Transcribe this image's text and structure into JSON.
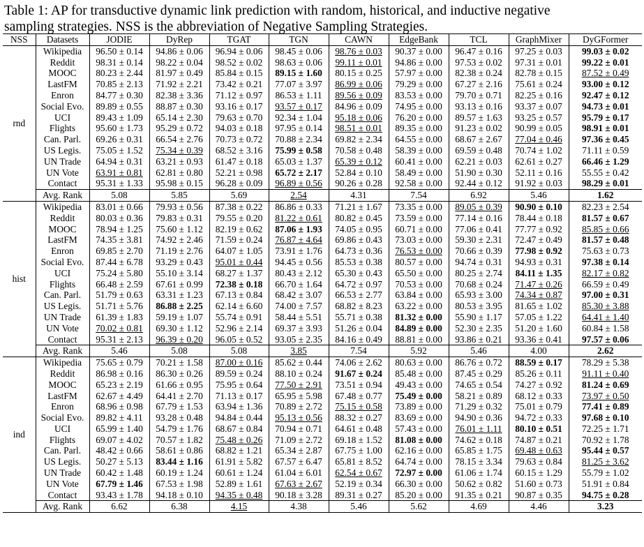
{
  "caption": {
    "line1": "Table 1:  AP for transductive dynamic link prediction with random, historical, and inductive negative",
    "line2": "sampling strategies. NSS is the abbreviation of Negative Sampling Strategies."
  },
  "headers": [
    "NSS",
    "Datasets",
    "JODIE",
    "DyRep",
    "TGAT",
    "TGN",
    "CAWN",
    "EdgeBank",
    "TCL",
    "GraphMixer",
    "DyGFormer"
  ],
  "groups": [
    {
      "nss": "rnd",
      "rows": [
        {
          "dataset": "Wikipedia",
          "cells": [
            "96.50 ± 0.14",
            "94.86 ± 0.06",
            "96.94 ± 0.06",
            "98.45 ± 0.06",
            "98.76 ± 0.03",
            "90.37 ± 0.00",
            "96.47 ± 0.16",
            "97.25 ± 0.03",
            "99.03 ± 0.02"
          ],
          "bold": [
            8
          ],
          "ul": [
            4
          ]
        },
        {
          "dataset": "Reddit",
          "cells": [
            "98.31 ± 0.14",
            "98.22 ± 0.04",
            "98.52 ± 0.02",
            "98.63 ± 0.06",
            "99.11 ± 0.01",
            "94.86 ± 0.00",
            "97.53 ± 0.02",
            "97.31 ± 0.01",
            "99.22 ± 0.01"
          ],
          "bold": [
            8
          ],
          "ul": [
            4
          ]
        },
        {
          "dataset": "MOOC",
          "cells": [
            "80.23 ± 2.44",
            "81.97 ± 0.49",
            "85.84 ± 0.15",
            "89.15 ± 1.60",
            "80.15 ± 0.25",
            "57.97 ± 0.00",
            "82.38 ± 0.24",
            "82.78 ± 0.15",
            "87.52 ± 0.49"
          ],
          "bold": [
            3
          ],
          "ul": [
            8
          ]
        },
        {
          "dataset": "LastFM",
          "cells": [
            "70.85 ± 2.13",
            "71.92 ± 2.21",
            "73.42 ± 0.21",
            "77.07 ± 3.97",
            "86.99 ± 0.06",
            "79.29 ± 0.00",
            "67.27 ± 2.16",
            "75.61 ± 0.24",
            "93.00 ± 0.12"
          ],
          "bold": [
            8
          ],
          "ul": [
            4
          ]
        },
        {
          "dataset": "Enron",
          "cells": [
            "84.77 ± 0.30",
            "82.38 ± 3.36",
            "71.12 ± 0.97",
            "86.53 ± 1.11",
            "89.56 ± 0.09",
            "83.53 ± 0.00",
            "79.70 ± 0.71",
            "82.25 ± 0.16",
            "92.47 ± 0.12"
          ],
          "bold": [
            8
          ],
          "ul": [
            4
          ]
        },
        {
          "dataset": "Social Evo.",
          "cells": [
            "89.89 ± 0.55",
            "88.87 ± 0.30",
            "93.16 ± 0.17",
            "93.57 ± 0.17",
            "84.96 ± 0.09",
            "74.95 ± 0.00",
            "93.13 ± 0.16",
            "93.37 ± 0.07",
            "94.73 ± 0.01"
          ],
          "bold": [
            8
          ],
          "ul": [
            3
          ]
        },
        {
          "dataset": "UCI",
          "cells": [
            "89.43 ± 1.09",
            "65.14 ± 2.30",
            "79.63 ± 0.70",
            "92.34 ± 1.04",
            "95.18 ± 0.06",
            "76.20 ± 0.00",
            "89.57 ± 1.63",
            "93.25 ± 0.57",
            "95.79 ± 0.17"
          ],
          "bold": [
            8
          ],
          "ul": [
            4
          ]
        },
        {
          "dataset": "Flights",
          "cells": [
            "95.60 ± 1.73",
            "95.29 ± 0.72",
            "94.03 ± 0.18",
            "97.95 ± 0.14",
            "98.51 ± 0.01",
            "89.35 ± 0.00",
            "91.23 ± 0.02",
            "90.99 ± 0.05",
            "98.91 ± 0.01"
          ],
          "bold": [
            8
          ],
          "ul": [
            4
          ]
        },
        {
          "dataset": "Can. Parl.",
          "cells": [
            "69.26 ± 0.31",
            "66.54 ± 2.76",
            "70.73 ± 0.72",
            "70.88 ± 2.34",
            "69.82 ± 2.34",
            "64.55 ± 0.00",
            "68.67 ± 2.67",
            "77.04 ± 0.46",
            "97.36 ± 0.45"
          ],
          "bold": [
            8
          ],
          "ul": [
            7
          ]
        },
        {
          "dataset": "US Legis.",
          "cells": [
            "75.05 ± 1.52",
            "75.34 ± 0.39",
            "68.52 ± 3.16",
            "75.99 ± 0.58",
            "70.58 ± 0.48",
            "58.39 ± 0.00",
            "69.59 ± 0.48",
            "70.74 ± 1.02",
            "71.11 ± 0.59"
          ],
          "bold": [
            3
          ],
          "ul": [
            1
          ]
        },
        {
          "dataset": "UN Trade",
          "cells": [
            "64.94 ± 0.31",
            "63.21 ± 0.93",
            "61.47 ± 0.18",
            "65.03 ± 1.37",
            "65.39 ± 0.12",
            "60.41 ± 0.00",
            "62.21 ± 0.03",
            "62.61 ± 0.27",
            "66.46 ± 1.29"
          ],
          "bold": [
            8
          ],
          "ul": [
            4
          ]
        },
        {
          "dataset": "UN Vote",
          "cells": [
            "63.91 ± 0.81",
            "62.81 ± 0.80",
            "52.21 ± 0.98",
            "65.72 ± 2.17",
            "52.84 ± 0.10",
            "58.49 ± 0.00",
            "51.90 ± 0.30",
            "52.11 ± 0.16",
            "55.55 ± 0.42"
          ],
          "bold": [
            3
          ],
          "ul": [
            0
          ]
        },
        {
          "dataset": "Contact",
          "cells": [
            "95.31 ± 1.33",
            "95.98 ± 0.15",
            "96.28 ± 0.09",
            "96.89 ± 0.56",
            "90.26 ± 0.28",
            "92.58 ± 0.00",
            "92.44 ± 0.12",
            "91.92 ± 0.03",
            "98.29 ± 0.01"
          ],
          "bold": [
            8
          ],
          "ul": [
            3
          ]
        }
      ],
      "rank": {
        "label": "Avg. Rank",
        "cells": [
          "5.08",
          "5.85",
          "5.69",
          "2.54",
          "4.31",
          "7.54",
          "6.92",
          "5.46",
          "1.62"
        ],
        "bold": [
          8
        ],
        "ul": [
          3
        ]
      }
    },
    {
      "nss": "hist",
      "rows": [
        {
          "dataset": "Wikipedia",
          "cells": [
            "83.01 ± 0.66",
            "79.93 ± 0.56",
            "87.38 ± 0.22",
            "86.86 ± 0.33",
            "71.21 ± 1.67",
            "73.35 ± 0.00",
            "89.05 ± 0.39",
            "90.90 ± 0.10",
            "82.23 ± 2.54"
          ],
          "bold": [
            7
          ],
          "ul": [
            6
          ]
        },
        {
          "dataset": "Reddit",
          "cells": [
            "80.03 ± 0.36",
            "79.83 ± 0.31",
            "79.55 ± 0.20",
            "81.22 ± 0.61",
            "80.82 ± 0.45",
            "73.59 ± 0.00",
            "77.14 ± 0.16",
            "78.44 ± 0.18",
            "81.57 ± 0.67"
          ],
          "bold": [
            8
          ],
          "ul": [
            3
          ]
        },
        {
          "dataset": "MOOC",
          "cells": [
            "78.94 ± 1.25",
            "75.60 ± 1.12",
            "82.19 ± 0.62",
            "87.06 ± 1.93",
            "74.05 ± 0.95",
            "60.71 ± 0.00",
            "77.06 ± 0.41",
            "77.77 ± 0.92",
            "85.85 ± 0.66"
          ],
          "bold": [
            3
          ],
          "ul": [
            8
          ]
        },
        {
          "dataset": "LastFM",
          "cells": [
            "74.35 ± 3.81",
            "74.92 ± 2.46",
            "71.59 ± 0.24",
            "76.87 ± 4.64",
            "69.86 ± 0.43",
            "73.03 ± 0.00",
            "59.30 ± 2.31",
            "72.47 ± 0.49",
            "81.57 ± 0.48"
          ],
          "bold": [
            8
          ],
          "ul": [
            3
          ]
        },
        {
          "dataset": "Enron",
          "cells": [
            "69.85 ± 2.70",
            "71.19 ± 2.76",
            "64.07 ± 1.05",
            "73.91 ± 1.76",
            "64.73 ± 0.36",
            "76.53 ± 0.00",
            "70.66 ± 0.39",
            "77.98 ± 0.92",
            "75.63 ± 0.73"
          ],
          "bold": [
            7
          ],
          "ul": [
            5
          ]
        },
        {
          "dataset": "Social Evo.",
          "cells": [
            "87.44 ± 6.78",
            "93.29 ± 0.43",
            "95.01 ± 0.44",
            "94.45 ± 0.56",
            "85.53 ± 0.38",
            "80.57 ± 0.00",
            "94.74 ± 0.31",
            "94.93 ± 0.31",
            "97.38 ± 0.14"
          ],
          "bold": [
            8
          ],
          "ul": [
            2
          ]
        },
        {
          "dataset": "UCI",
          "cells": [
            "75.24 ± 5.80",
            "55.10 ± 3.14",
            "68.27 ± 1.37",
            "80.43 ± 2.12",
            "65.30 ± 0.43",
            "65.50 ± 0.00",
            "80.25 ± 2.74",
            "84.11 ± 1.35",
            "82.17 ± 0.82"
          ],
          "bold": [
            7
          ],
          "ul": [
            8
          ]
        },
        {
          "dataset": "Flights",
          "cells": [
            "66.48 ± 2.59",
            "67.61 ± 0.99",
            "72.38 ± 0.18",
            "66.70 ± 1.64",
            "64.72 ± 0.97",
            "70.53 ± 0.00",
            "70.68 ± 0.24",
            "71.47 ± 0.26",
            "66.59 ± 0.49"
          ],
          "bold": [
            2
          ],
          "ul": [
            7
          ]
        },
        {
          "dataset": "Can. Parl.",
          "cells": [
            "51.79 ± 0.63",
            "63.31 ± 1.23",
            "67.13 ± 0.84",
            "68.42 ± 3.07",
            "66.53 ± 2.77",
            "63.84 ± 0.00",
            "65.93 ± 3.00",
            "74.34 ± 0.87",
            "97.00 ± 0.31"
          ],
          "bold": [
            8
          ],
          "ul": [
            7
          ]
        },
        {
          "dataset": "US Legis.",
          "cells": [
            "51.71 ± 5.76",
            "86.88 ± 2.25",
            "62.14 ± 6.60",
            "74.00 ± 7.57",
            "68.82 ± 8.23",
            "63.22 ± 0.00",
            "80.53 ± 3.95",
            "81.65 ± 1.02",
            "85.30 ± 3.88"
          ],
          "bold": [
            1
          ],
          "ul": [
            8
          ]
        },
        {
          "dataset": "UN Trade",
          "cells": [
            "61.39 ± 1.83",
            "59.19 ± 1.07",
            "55.74 ± 0.91",
            "58.44 ± 5.51",
            "55.71 ± 0.38",
            "81.32 ± 0.00",
            "55.90 ± 1.17",
            "57.05 ± 1.22",
            "64.41 ± 1.40"
          ],
          "bold": [
            5
          ],
          "ul": [
            8
          ]
        },
        {
          "dataset": "UN Vote",
          "cells": [
            "70.02 ± 0.81",
            "69.30 ± 1.12",
            "52.96 ± 2.14",
            "69.37 ± 3.93",
            "51.26 ± 0.04",
            "84.89 ± 0.00",
            "52.30 ± 2.35",
            "51.20 ± 1.60",
            "60.84 ± 1.58"
          ],
          "bold": [
            5
          ],
          "ul": [
            0
          ]
        },
        {
          "dataset": "Contact",
          "cells": [
            "95.31 ± 2.13",
            "96.39 ± 0.20",
            "96.05 ± 0.52",
            "93.05 ± 2.35",
            "84.16 ± 0.49",
            "88.81 ± 0.00",
            "93.86 ± 0.21",
            "93.36 ± 0.41",
            "97.57 ± 0.06"
          ],
          "bold": [
            8
          ],
          "ul": [
            1
          ]
        }
      ],
      "rank": {
        "label": "Avg. Rank",
        "cells": [
          "5.46",
          "5.08",
          "5.08",
          "3.85",
          "7.54",
          "5.92",
          "5.46",
          "4.00",
          "2.62"
        ],
        "bold": [
          8
        ],
        "ul": [
          3
        ]
      }
    },
    {
      "nss": "ind",
      "rows": [
        {
          "dataset": "Wikipedia",
          "cells": [
            "75.65 ± 0.79",
            "70.21 ± 1.58",
            "87.00 ± 0.16",
            "85.62 ± 0.44",
            "74.06 ± 2.62",
            "80.63 ± 0.00",
            "86.76 ± 0.72",
            "88.59 ± 0.17",
            "78.29 ± 5.38"
          ],
          "bold": [
            7
          ],
          "ul": [
            2
          ]
        },
        {
          "dataset": "Reddit",
          "cells": [
            "86.98 ± 0.16",
            "86.30 ± 0.26",
            "89.59 ± 0.24",
            "88.10 ± 0.24",
            "91.67 ± 0.24",
            "85.48 ± 0.00",
            "87.45 ± 0.29",
            "85.26 ± 0.11",
            "91.11 ± 0.40"
          ],
          "bold": [
            4
          ],
          "ul": [
            8
          ]
        },
        {
          "dataset": "MOOC",
          "cells": [
            "65.23 ± 2.19",
            "61.66 ± 0.95",
            "75.95 ± 0.64",
            "77.50 ± 2.91",
            "73.51 ± 0.94",
            "49.43 ± 0.00",
            "74.65 ± 0.54",
            "74.27 ± 0.92",
            "81.24 ± 0.69"
          ],
          "bold": [
            8
          ],
          "ul": [
            3
          ]
        },
        {
          "dataset": "LastFM",
          "cells": [
            "62.67 ± 4.49",
            "64.41 ± 2.70",
            "71.13 ± 0.17",
            "65.95 ± 5.98",
            "67.48 ± 0.77",
            "75.49 ± 0.00",
            "58.21 ± 0.89",
            "68.12 ± 0.33",
            "73.97 ± 0.50"
          ],
          "bold": [
            5
          ],
          "ul": [
            8
          ]
        },
        {
          "dataset": "Enron",
          "cells": [
            "68.96 ± 0.98",
            "67.79 ± 1.53",
            "63.94 ± 1.36",
            "70.89 ± 2.72",
            "75.15 ± 0.58",
            "73.89 ± 0.00",
            "71.29 ± 0.32",
            "75.01 ± 0.79",
            "77.41 ± 0.89"
          ],
          "bold": [
            8
          ],
          "ul": [
            4
          ]
        },
        {
          "dataset": "Social Evo.",
          "cells": [
            "89.82 ± 4.11",
            "93.28 ± 0.48",
            "94.84 ± 0.44",
            "95.13 ± 0.56",
            "88.32 ± 0.27",
            "83.69 ± 0.00",
            "94.90 ± 0.36",
            "94.72 ± 0.33",
            "97.68 ± 0.10"
          ],
          "bold": [
            8
          ],
          "ul": [
            3
          ]
        },
        {
          "dataset": "UCI",
          "cells": [
            "65.99 ± 1.40",
            "54.79 ± 1.76",
            "68.67 ± 0.84",
            "70.94 ± 0.71",
            "64.61 ± 0.48",
            "57.43 ± 0.00",
            "76.01 ± 1.11",
            "80.10 ± 0.51",
            "72.25 ± 1.71"
          ],
          "bold": [
            7
          ],
          "ul": [
            6
          ]
        },
        {
          "dataset": "Flights",
          "cells": [
            "69.07 ± 4.02",
            "70.57 ± 1.82",
            "75.48 ± 0.26",
            "71.09 ± 2.72",
            "69.18 ± 1.52",
            "81.08 ± 0.00",
            "74.62 ± 0.18",
            "74.87 ± 0.21",
            "70.92 ± 1.78"
          ],
          "bold": [
            5
          ],
          "ul": [
            2
          ]
        },
        {
          "dataset": "Can. Parl.",
          "cells": [
            "48.42 ± 0.66",
            "58.61 ± 0.86",
            "68.82 ± 1.21",
            "65.34 ± 2.87",
            "67.75 ± 1.00",
            "62.16 ± 0.00",
            "65.85 ± 1.75",
            "69.48 ± 0.63",
            "95.44 ± 0.57"
          ],
          "bold": [
            8
          ],
          "ul": [
            7
          ]
        },
        {
          "dataset": "US Legis.",
          "cells": [
            "50.27 ± 5.13",
            "83.44 ± 1.16",
            "61.91 ± 5.82",
            "67.57 ± 6.47",
            "65.81 ± 8.52",
            "64.74 ± 0.00",
            "78.15 ± 3.34",
            "79.63 ± 0.84",
            "81.25 ± 3.62"
          ],
          "bold": [
            1
          ],
          "ul": [
            8
          ]
        },
        {
          "dataset": "UN Trade",
          "cells": [
            "60.42 ± 1.48",
            "60.19 ± 1.24",
            "60.61 ± 1.24",
            "61.04 ± 6.01",
            "62.54 ± 0.67",
            "72.97 ± 0.00",
            "61.06 ± 1.74",
            "60.15 ± 1.29",
            "55.79 ± 1.02"
          ],
          "bold": [
            5
          ],
          "ul": [
            4
          ]
        },
        {
          "dataset": "UN Vote",
          "cells": [
            "67.79 ± 1.46",
            "67.53 ± 1.98",
            "52.89 ± 1.61",
            "67.63 ± 2.67",
            "52.19 ± 0.34",
            "66.30 ± 0.00",
            "50.62 ± 0.82",
            "51.60 ± 0.73",
            "51.91 ± 0.84"
          ],
          "bold": [
            0
          ],
          "ul": [
            3
          ]
        },
        {
          "dataset": "Contact",
          "cells": [
            "93.43 ± 1.78",
            "94.18 ± 0.10",
            "94.35 ± 0.48",
            "90.18 ± 3.28",
            "89.31 ± 0.27",
            "85.20 ± 0.00",
            "91.35 ± 0.21",
            "90.87 ± 0.35",
            "94.75 ± 0.28"
          ],
          "bold": [
            8
          ],
          "ul": [
            2
          ]
        }
      ],
      "rank": {
        "label": "Avg. Rank",
        "cells": [
          "6.62",
          "6.38",
          "4.15",
          "4.38",
          "5.46",
          "5.62",
          "4.69",
          "4.46",
          "3.23"
        ],
        "bold": [
          8
        ],
        "ul": [
          2
        ]
      }
    }
  ]
}
